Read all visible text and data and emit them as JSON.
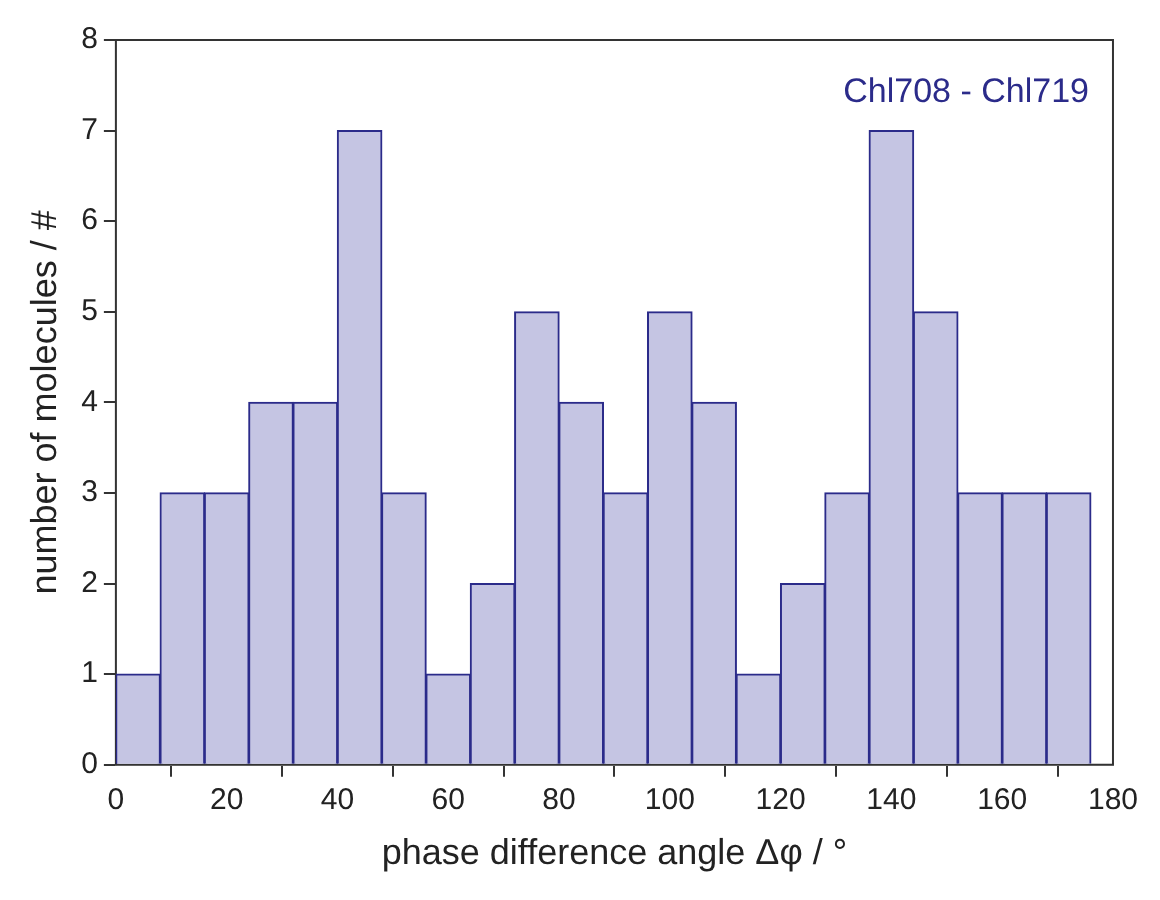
{
  "chart_data": {
    "type": "histogram",
    "xlabel": "phase difference angle Δφ / °",
    "ylabel": "number of molecules / #",
    "annotations": [
      "Chl708 - Chl719"
    ],
    "bins": [
      0,
      8,
      16,
      24,
      32,
      40,
      48,
      56,
      64,
      72,
      80,
      88,
      96,
      104,
      112,
      120,
      128,
      136,
      144,
      152,
      160,
      168,
      176
    ],
    "values": [
      1,
      3,
      3,
      4,
      4,
      7,
      3,
      1,
      2,
      5,
      4,
      3,
      5,
      4,
      1,
      2,
      3,
      7,
      5,
      3,
      3,
      3
    ],
    "color": "#c5c5e3",
    "xlim": [
      0,
      180
    ],
    "xticks": [
      0,
      20,
      40,
      60,
      80,
      100,
      120,
      140,
      160,
      180
    ],
    "ylim": [
      0,
      8
    ],
    "yticks": [
      0,
      1,
      2,
      3,
      4,
      5,
      6,
      7,
      8
    ],
    "grid": false,
    "legend": false
  }
}
